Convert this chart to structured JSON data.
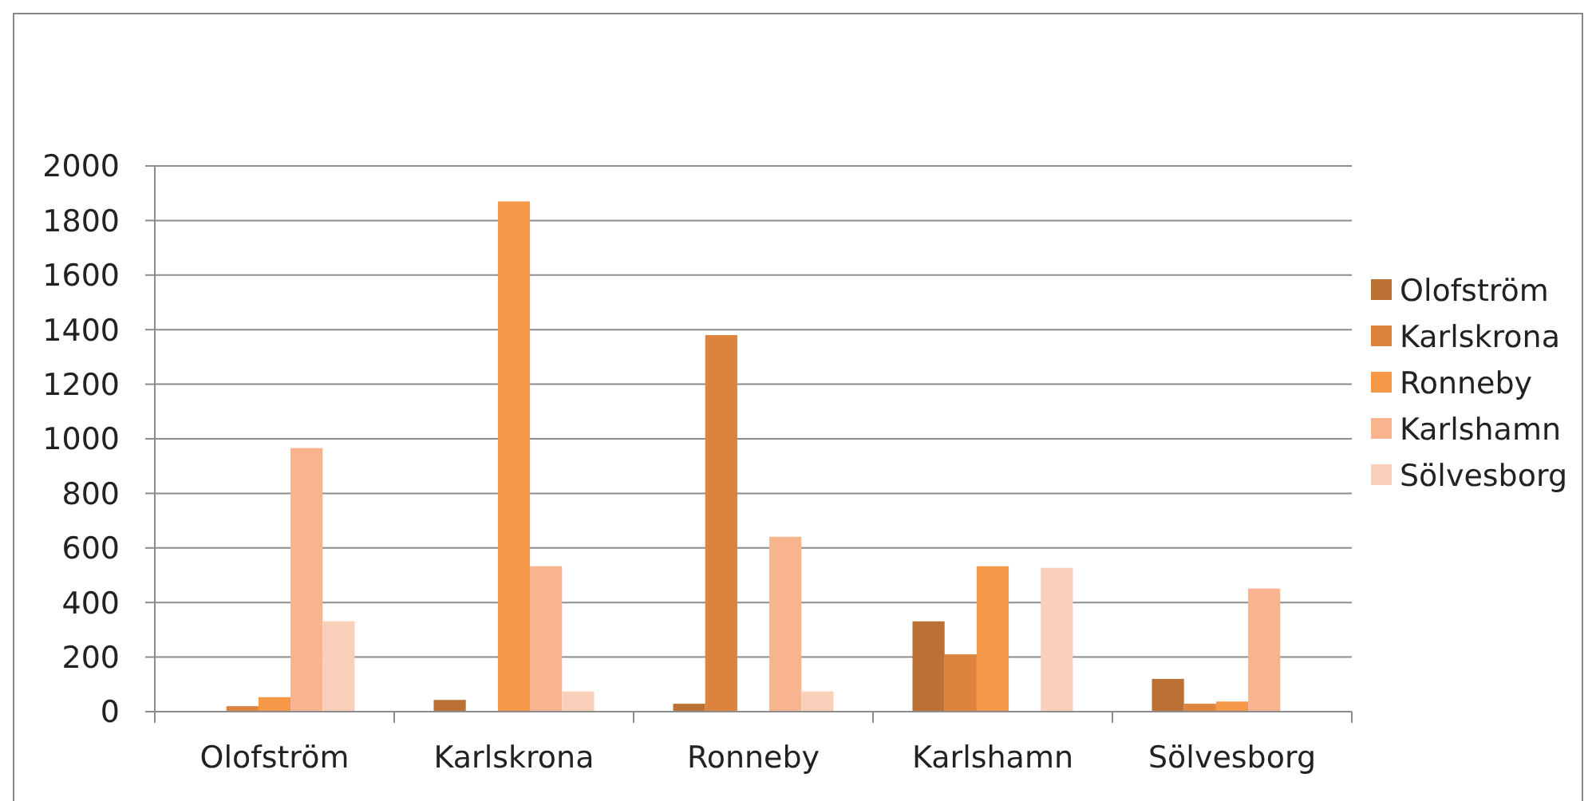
{
  "chart_data": {
    "type": "bar",
    "categories": [
      "Olofström",
      "Karlskrona",
      "Ronneby",
      "Karlshamn",
      "Sölvesborg"
    ],
    "series": [
      {
        "name": "Olofström",
        "color": "#bb7133",
        "values": [
          null,
          43,
          29,
          331,
          120
        ]
      },
      {
        "name": "Karlskrona",
        "color": "#dc833d",
        "values": [
          20,
          null,
          1380,
          210,
          29
        ]
      },
      {
        "name": "Ronneby",
        "color": "#f59848",
        "values": [
          53,
          1870,
          null,
          533,
          37
        ]
      },
      {
        "name": "Karlshamn",
        "color": "#f8b48f",
        "values": [
          966,
          533,
          641,
          null,
          451
        ]
      },
      {
        "name": "Sölvesborg",
        "color": "#fad0ba",
        "values": [
          331,
          74,
          74,
          527,
          null
        ]
      }
    ],
    "ylim": [
      0,
      2000
    ],
    "yticks": [
      0,
      200,
      400,
      600,
      800,
      1000,
      1200,
      1400,
      1600,
      1800,
      2000
    ],
    "grid": "y",
    "legend": "right"
  }
}
